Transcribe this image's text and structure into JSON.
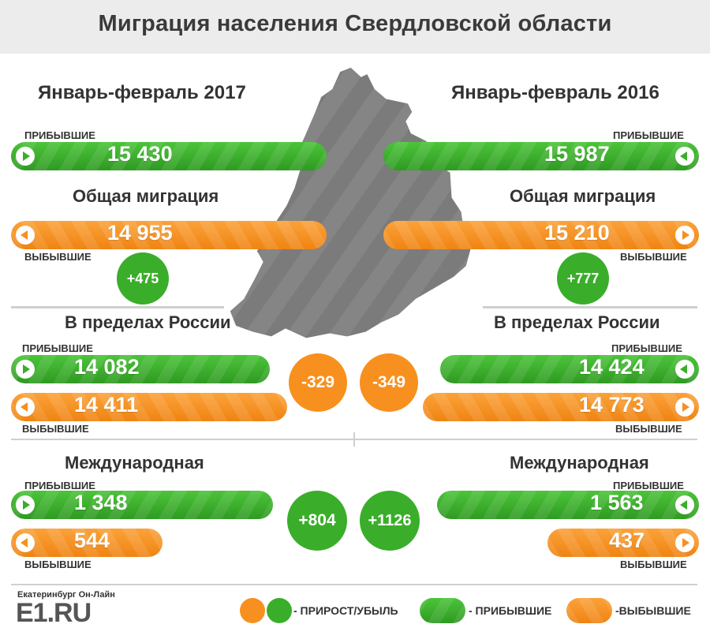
{
  "title": "Миграция населения Свердловской области",
  "labels": {
    "arrived": "ПРИБЫВШИЕ",
    "departed": "ВЫБЫВШИЕ"
  },
  "left": {
    "period": "Январь-февраль 2017",
    "overall_heading": "Общая миграция",
    "overall": {
      "arrived": "15 430",
      "departed": "14 955",
      "net": "+475"
    },
    "russia_heading": "В пределах России",
    "russia": {
      "arrived": "14 082",
      "departed": "14 411",
      "net": "-329"
    },
    "intl_heading": "Международная",
    "intl": {
      "arrived": "1 348",
      "departed": "544",
      "net": "+804"
    }
  },
  "right": {
    "period": "Январь-февраль 2016",
    "overall_heading": "Общая миграция",
    "overall": {
      "arrived": "15 987",
      "departed": "15 210",
      "net": "+777"
    },
    "russia_heading": "В пределах России",
    "russia": {
      "arrived": "14 424",
      "departed": "14 773",
      "net": "-349"
    },
    "intl_heading": "Международная",
    "intl": {
      "arrived": "1 563",
      "departed": "437",
      "net": "+1126"
    }
  },
  "legend": {
    "net": "- ПРИРОСТ/УБЫЛЬ",
    "arrived": "- ПРИБЫВШИЕ",
    "departed": "-ВЫБЫВШИЕ"
  },
  "logo": {
    "city": "Екатеринбург Он-Лайн",
    "brand": "E1.RU"
  },
  "colors": {
    "green": "#3aae2a",
    "orange": "#f7901e",
    "map": "#7a7a7a",
    "header_bg": "#ececec"
  }
}
